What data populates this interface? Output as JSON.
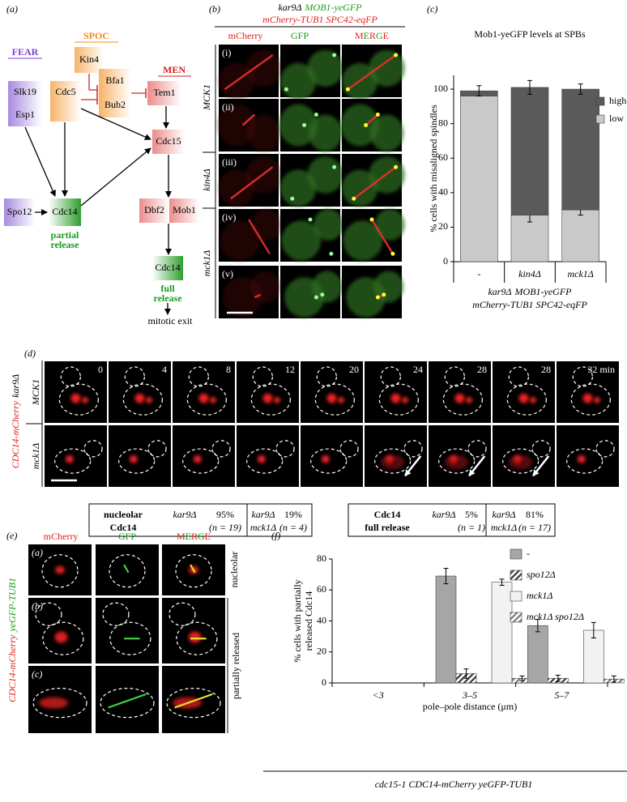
{
  "panel_labels": [
    "(a)",
    "(b)",
    "(c)",
    "(d)",
    "(e)",
    "(f)"
  ],
  "panel_a": {
    "groups": {
      "spoc": "SPOC",
      "fear": "FEAR",
      "men": "MEN"
    },
    "nodes": [
      "Slk19",
      "Esp1",
      "Cdc5",
      "Kin4",
      "Bfa1",
      "Bub2",
      "Tem1",
      "Cdc15",
      "Spo12",
      "Cdc14",
      "Dbf2",
      "Mob1",
      "Cdc14"
    ],
    "notes": [
      [
        "partial",
        "release"
      ],
      [
        "full",
        "release"
      ],
      "mitotic exit"
    ]
  },
  "panel_b": {
    "title": [
      "kar9Δ",
      "MOB1-yeGFP",
      "mCherry-TUB1 SPC42-eqFP"
    ],
    "columns": [
      "mCherry",
      "GFP",
      "MERGE"
    ],
    "rows": [
      "(i)",
      "(ii)",
      "(iii)",
      "(iv)",
      "(v)"
    ],
    "strains": [
      "MCK1",
      "kin4Δ",
      "mck1Δ"
    ]
  },
  "chart_data": [
    {
      "type": "bar",
      "stacked": true,
      "title": "Mob1-yeGFP levels at SPBs",
      "ylabel": "% cells with misaligned spindles",
      "xlabel": [
        "kar9Δ",
        "MOB1-yeGFP",
        "mCherry-TUB1 SPC42-eqFP"
      ],
      "categories": [
        "-",
        "kin4Δ",
        "mck1Δ"
      ],
      "series": [
        {
          "name": "low",
          "color": "#c9c9c9",
          "values": [
            96,
            27,
            30
          ],
          "errors": [
            null,
            4,
            3
          ]
        },
        {
          "name": "high",
          "color": "#5a5a5a",
          "values": [
            3,
            74,
            70
          ],
          "errors": [
            3,
            4,
            3
          ]
        }
      ],
      "ylim": [
        0,
        108
      ],
      "yticks": [
        0,
        20,
        40,
        60,
        80,
        100
      ],
      "grid": false,
      "legend": "upper right"
    },
    {
      "type": "bar",
      "stacked": false,
      "ylabel": [
        "% cells with partially",
        "released Cdc14"
      ],
      "xlabel": "pole–pole distance (μm)",
      "categories": [
        "<3",
        "3–5",
        "5–7"
      ],
      "series": [
        {
          "name": "-",
          "color": "#a6a6a6",
          "hatch": false,
          "values": [
            0,
            69,
            37
          ],
          "errors": [
            null,
            5,
            4
          ]
        },
        {
          "name": "spo12Δ",
          "color": "#3a3a3a",
          "hatch": true,
          "values": [
            0,
            6,
            3
          ],
          "errors": [
            null,
            3,
            2
          ]
        },
        {
          "name": "mck1Δ",
          "color": "#f2f2f2",
          "hatch": false,
          "values": [
            0,
            65,
            34
          ],
          "errors": [
            null,
            2,
            5
          ]
        },
        {
          "name": "mck1Δ spo12Δ",
          "color": "#7a7a7a",
          "hatch": true,
          "values": [
            0,
            3,
            2.5
          ],
          "errors": [
            null,
            1.5,
            2
          ]
        }
      ],
      "ylim": [
        0,
        80
      ],
      "yticks": [
        0,
        20,
        40,
        60,
        80
      ],
      "grid": false,
      "legend": "upper right",
      "strain": "cdc15-1 CDC14-mCherry yeGFP-TUB1"
    }
  ],
  "panel_d": {
    "strain": [
      "CDC14-mCherry",
      "kar9Δ"
    ],
    "rows": [
      "MCK1",
      "mck1Δ"
    ],
    "times": [
      "0",
      "4",
      "8",
      "12",
      "20",
      "24",
      "28",
      "28",
      "32 min"
    ],
    "table": [
      {
        "heading": [
          "nucleolar",
          "Cdc14"
        ]
      },
      {
        "strain": [
          "kar9Δ"
        ],
        "percent": "95%",
        "n": "(n = 19)"
      },
      {
        "strain": [
          "kar9Δ",
          "mck1Δ"
        ],
        "percent": "19%",
        "n": "(n = 4)"
      },
      {
        "heading": [
          "Cdc14",
          "full release"
        ]
      },
      {
        "strain": [
          "kar9Δ"
        ],
        "percent": "5%",
        "n": "(n = 1)"
      },
      {
        "strain": [
          "kar9Δ",
          "mck1Δ"
        ],
        "percent": "81%",
        "n": "(n = 17)"
      }
    ]
  },
  "panel_e": {
    "strain": [
      "CDC14-mCherry",
      "yeGFP-TUB1"
    ],
    "columns": [
      "mCherry",
      "GFP",
      "MERGE"
    ],
    "rows": [
      "(a)",
      "(b)",
      "(c)"
    ],
    "states": [
      "nucleolar",
      "partially released"
    ]
  }
}
